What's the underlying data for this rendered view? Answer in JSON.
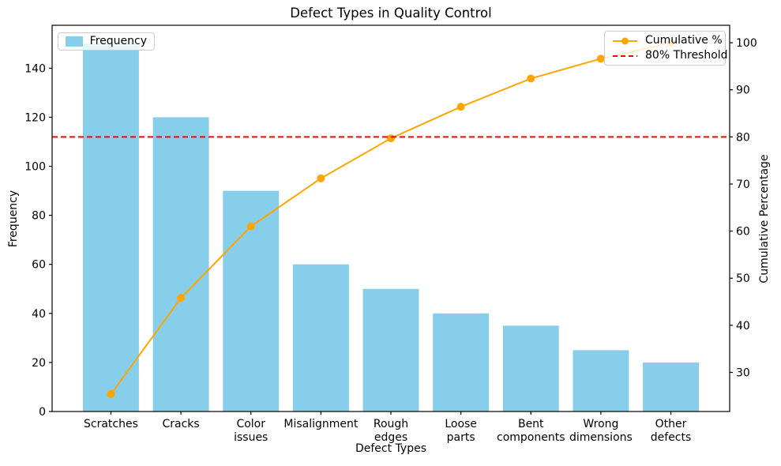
{
  "chart_data": {
    "type": "bar+line (Pareto chart)",
    "title": "Defect Types in Quality Control",
    "xlabel": "Defect Types",
    "ylabel": "Frequency",
    "y2label": "Cumulative Percentage",
    "categories": [
      "Scratches",
      "Cracks",
      "Color\nissues",
      "Misalignment",
      "Rough\nedges",
      "Loose\nparts",
      "Bent\ncomponents",
      "Wrong\ndimensions",
      "Other\ndefects"
    ],
    "bar_series": {
      "name": "Frequency",
      "color": "#87CEEB",
      "values": [
        150,
        120,
        90,
        60,
        50,
        40,
        35,
        25,
        20
      ]
    },
    "line_series": {
      "name": "Cumulative %",
      "color": "#FFA500",
      "values": [
        25.4,
        45.8,
        61.0,
        71.2,
        79.7,
        86.4,
        92.4,
        96.6,
        100.0
      ]
    },
    "threshold": {
      "name": "80% Threshold",
      "color": "#FF0000",
      "value": 80,
      "style": "dashed"
    },
    "left_axis": {
      "lim": [
        0,
        157.5
      ],
      "ticks": [
        0,
        20,
        40,
        60,
        80,
        100,
        120,
        140
      ]
    },
    "right_axis": {
      "lim": [
        21.7,
        103.7
      ],
      "ticks": [
        30,
        40,
        50,
        60,
        70,
        80,
        90,
        100
      ]
    },
    "legend_left_entries": [
      "Frequency"
    ],
    "legend_right_entries": [
      "Cumulative %",
      "80% Threshold"
    ],
    "layout_hints": {
      "grid": "off",
      "legend_positions": [
        "upper left",
        "upper right"
      ],
      "background": "#FFFFFF",
      "axis_color": "#000000"
    }
  }
}
